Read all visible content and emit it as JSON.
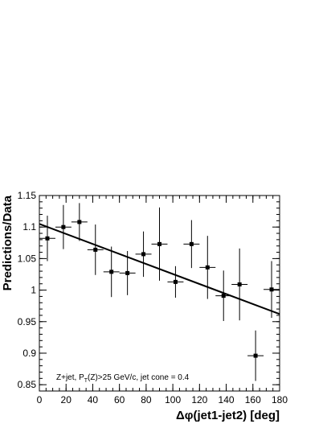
{
  "chart_data": {
    "type": "scatter",
    "xlabel": "Δφ(jet1-jet2) [deg]",
    "ylabel": "Predictions/Data",
    "xlim": [
      0,
      180
    ],
    "ylim": [
      0.84,
      1.15
    ],
    "x_ticks": [
      "0",
      "20",
      "40",
      "60",
      "80",
      "100",
      "120",
      "140",
      "160",
      "180"
    ],
    "y_ticks": [
      "0.85",
      "0.9",
      "0.95",
      "1",
      "1.05",
      "1.1",
      "1.15"
    ],
    "annotation": {
      "pre": "Z+jet, P",
      "sub": "T",
      "post": "(Z)>25 GeV/c, jet cone = 0.4"
    },
    "grid": false,
    "points": [
      {
        "x": 6,
        "y": 1.082,
        "xerr": 6,
        "yerr": 0.036
      },
      {
        "x": 18,
        "y": 1.1,
        "xerr": 6,
        "yerr": 0.035
      },
      {
        "x": 30,
        "y": 1.108,
        "xerr": 6,
        "yerr": 0.03
      },
      {
        "x": 42,
        "y": 1.064,
        "xerr": 6,
        "yerr": 0.04
      },
      {
        "x": 54,
        "y": 1.029,
        "xerr": 6,
        "yerr": 0.04
      },
      {
        "x": 66,
        "y": 1.027,
        "xerr": 6,
        "yerr": 0.035
      },
      {
        "x": 78,
        "y": 1.057,
        "xerr": 6,
        "yerr": 0.036
      },
      {
        "x": 90,
        "y": 1.073,
        "xerr": 6,
        "yerr": 0.058
      },
      {
        "x": 102,
        "y": 1.013,
        "xerr": 6,
        "yerr": 0.025
      },
      {
        "x": 114,
        "y": 1.073,
        "xerr": 6,
        "yerr": 0.038
      },
      {
        "x": 126,
        "y": 1.036,
        "xerr": 6,
        "yerr": 0.05
      },
      {
        "x": 138,
        "y": 0.991,
        "xerr": 6,
        "yerr": 0.04
      },
      {
        "x": 150,
        "y": 1.009,
        "xerr": 6,
        "yerr": 0.057
      },
      {
        "x": 162,
        "y": 0.896,
        "xerr": 6,
        "yerr": 0.04
      },
      {
        "x": 174,
        "y": 1.001,
        "xerr": 6,
        "yerr": 0.045
      }
    ],
    "fit_line": {
      "x": [
        0,
        180
      ],
      "y": [
        1.105,
        0.962
      ]
    }
  }
}
